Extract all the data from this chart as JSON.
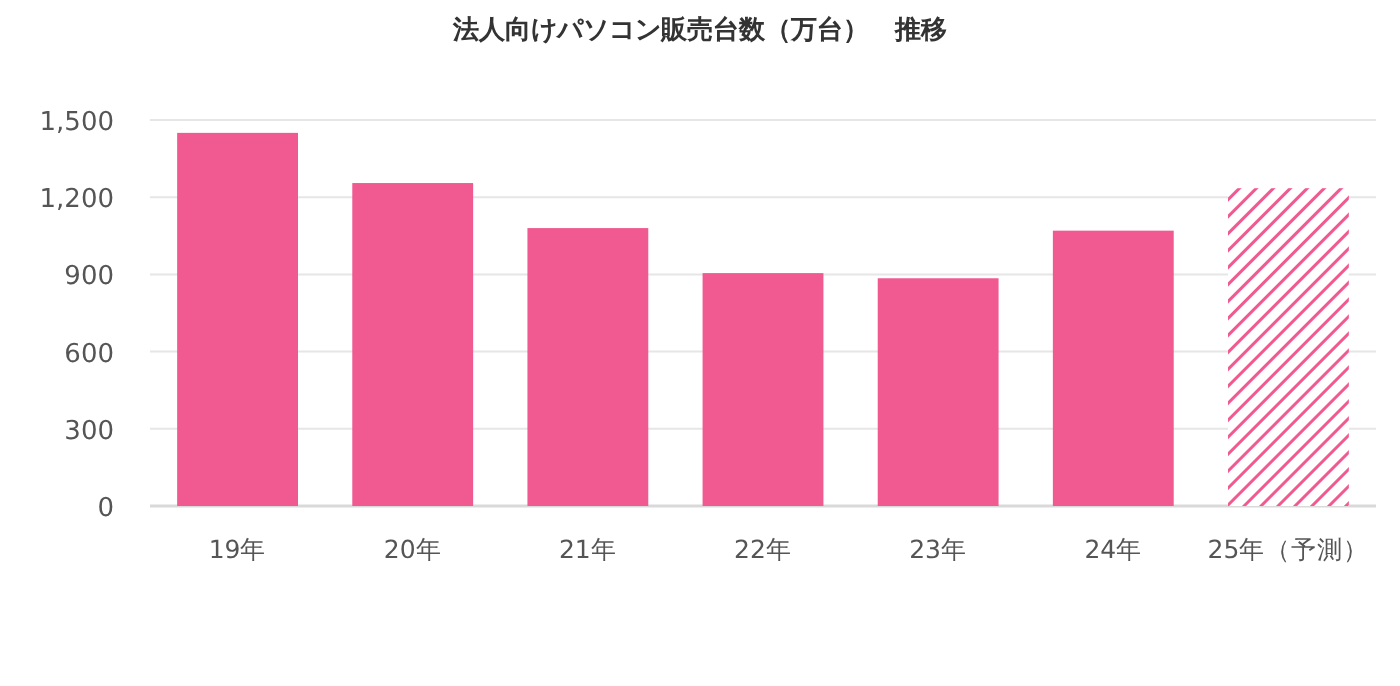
{
  "chart_data": {
    "type": "bar",
    "title": "法人向けパソコン販売台数（万台）　推移",
    "categories": [
      "19年",
      "20年",
      "21年",
      "22年",
      "23年",
      "24年",
      "25年（予測）"
    ],
    "series": [
      {
        "color": "#f05a91",
        "values": [
          1450,
          1255,
          1080,
          905,
          885,
          1070,
          null
        ]
      },
      {
        "color": "#f05a91",
        "values": [
          null,
          null,
          null,
          null,
          null,
          null,
          1235
        ]
      }
    ],
    "ylim": [
      0,
      1500
    ],
    "yticks": [
      {
        "value": 0,
        "label": "0"
      },
      {
        "value": 300,
        "label": "300"
      },
      {
        "value": 600,
        "label": "600"
      },
      {
        "value": 900,
        "label": "900"
      },
      {
        "value": 1200,
        "label": "1,200"
      },
      {
        "value": 1500,
        "label": "1,500"
      }
    ],
    "grid": "y"
  }
}
